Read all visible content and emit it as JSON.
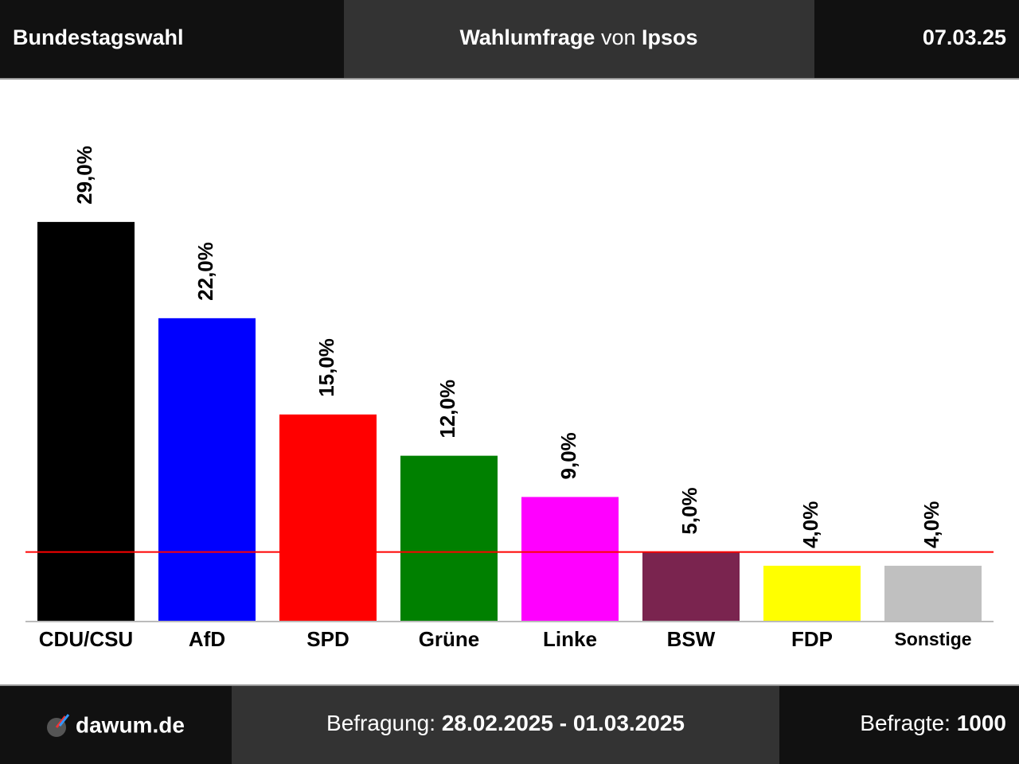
{
  "header": {
    "left": "Bundestagswahl",
    "title_bold": "Wahlumfrage",
    "title_mid": "von",
    "title_source": "Ipsos",
    "date": "07.03.25"
  },
  "chart_data": {
    "type": "bar",
    "categories": [
      "CDU/CSU",
      "AfD",
      "SPD",
      "Grüne",
      "Linke",
      "BSW",
      "FDP",
      "Sonstige"
    ],
    "values": [
      29,
      22,
      15,
      12,
      9,
      5,
      4,
      4
    ],
    "value_labels": [
      "29,0%",
      "22,0%",
      "15,0%",
      "12,0%",
      "9,0%",
      "5,0%",
      "4,0%",
      "4,0%"
    ],
    "colors": [
      "#000000",
      "#0000ff",
      "#ff0000",
      "#008000",
      "#ff00ff",
      "#7a244f",
      "#ffff00",
      "#c0c0c0"
    ],
    "threshold": 5,
    "threshold_color": "#ff0000"
  },
  "footer": {
    "site": "dawum.de",
    "period_label": "Befragung:",
    "period": "28.02.2025 - 01.03.2025",
    "sample_label": "Befragte:",
    "sample": "1000"
  }
}
